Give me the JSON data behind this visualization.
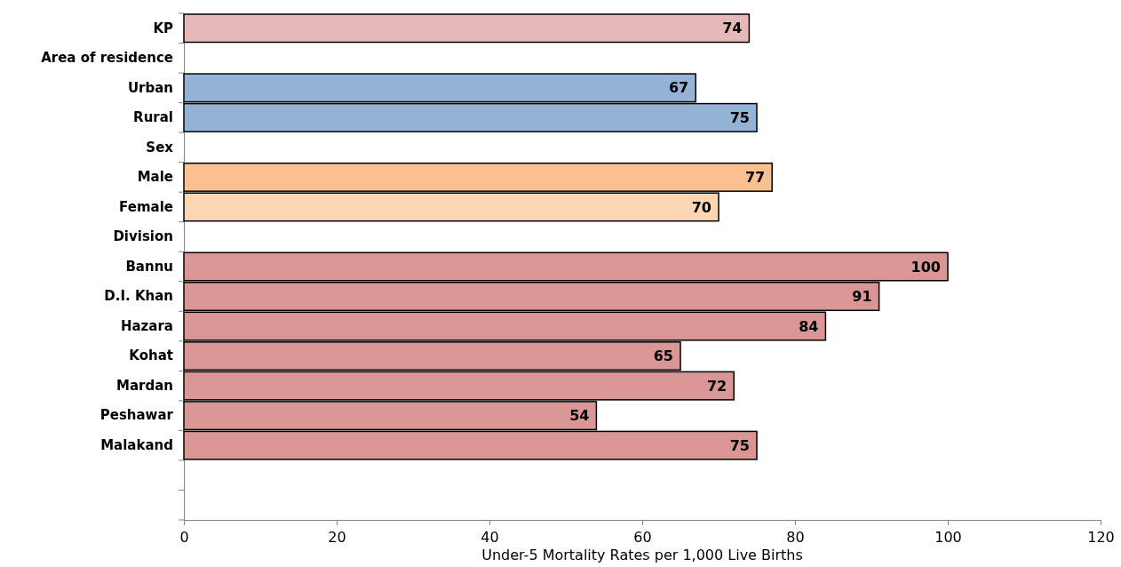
{
  "chart_data": {
    "type": "bar",
    "orientation": "horizontal",
    "xlabel": "Under-5 Mortality Rates per 1,000 Live  Births",
    "categories": [
      "KP",
      "Area of residence",
      "Urban",
      "Rural",
      "Sex",
      "Male",
      "Female",
      "Division",
      "Bannu",
      "D.I. Khan",
      "Hazara",
      "Kohat",
      "Mardan",
      "Peshawar",
      "Malakand",
      null,
      null
    ],
    "values": [
      74,
      null,
      67,
      75,
      null,
      77,
      70,
      null,
      100,
      91,
      84,
      65,
      72,
      54,
      75,
      null,
      null
    ],
    "colors": [
      "#e6b9b8",
      null,
      "#95b3d7",
      "#95b3d7",
      null,
      "#fac090",
      "#fcd5b5",
      null,
      "#d99694",
      "#d99694",
      "#d99694",
      "#d99694",
      "#d99694",
      "#d99694",
      "#d99694",
      null,
      null
    ],
    "xlim": [
      0,
      120
    ],
    "xticks": [
      0,
      20,
      40,
      60,
      80,
      100,
      120
    ],
    "data_labels": true
  }
}
